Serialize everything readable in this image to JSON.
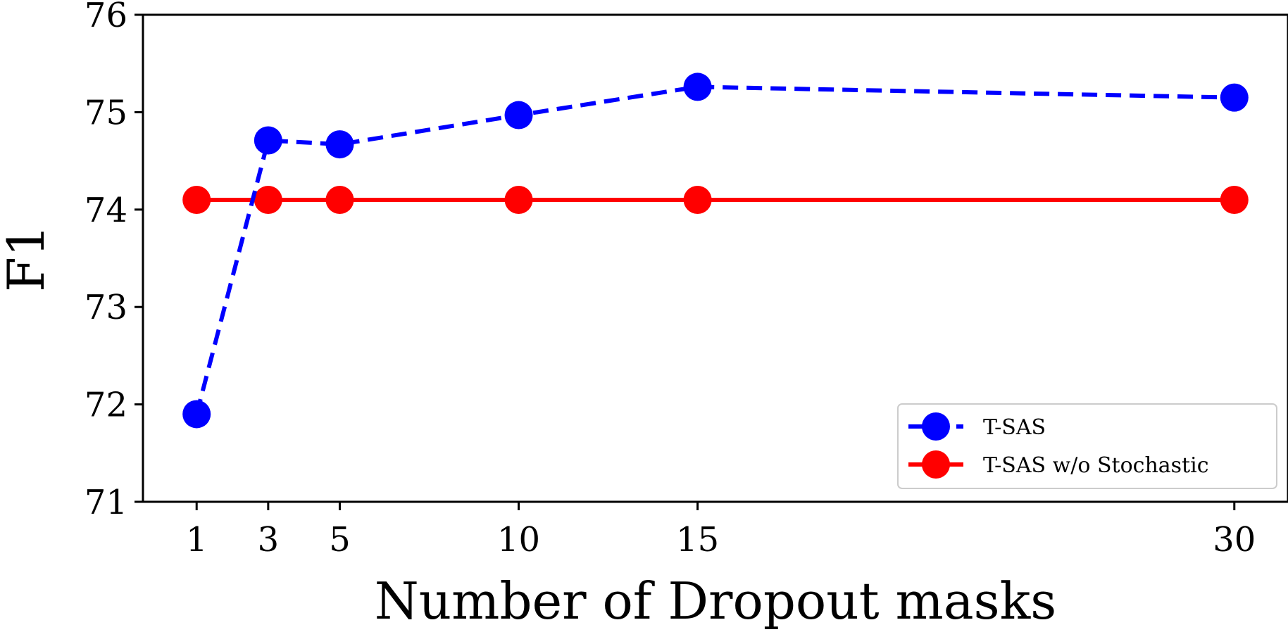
{
  "chart_data": {
    "type": "line",
    "title": "",
    "xlabel": "Number of Dropout masks",
    "ylabel": "F1",
    "x": [
      1,
      3,
      5,
      10,
      15,
      30
    ],
    "xticks": [
      1,
      3,
      5,
      10,
      15,
      30
    ],
    "xlim": [
      -0.5,
      31.5
    ],
    "ylim": [
      71,
      76
    ],
    "yticks": [
      71,
      72,
      73,
      74,
      75,
      76
    ],
    "grid": false,
    "legend_position": "lower-right",
    "series": [
      {
        "name": "T-SAS",
        "values": [
          71.9,
          74.71,
          74.67,
          74.97,
          75.26,
          75.15
        ],
        "color": "#0000ff",
        "line_style": "dashed",
        "marker": "circle"
      },
      {
        "name": "T-SAS w/o Stochastic",
        "values": [
          74.1,
          74.1,
          74.1,
          74.1,
          74.1,
          74.1
        ],
        "color": "#ff0000",
        "line_style": "solid",
        "marker": "circle"
      }
    ]
  }
}
